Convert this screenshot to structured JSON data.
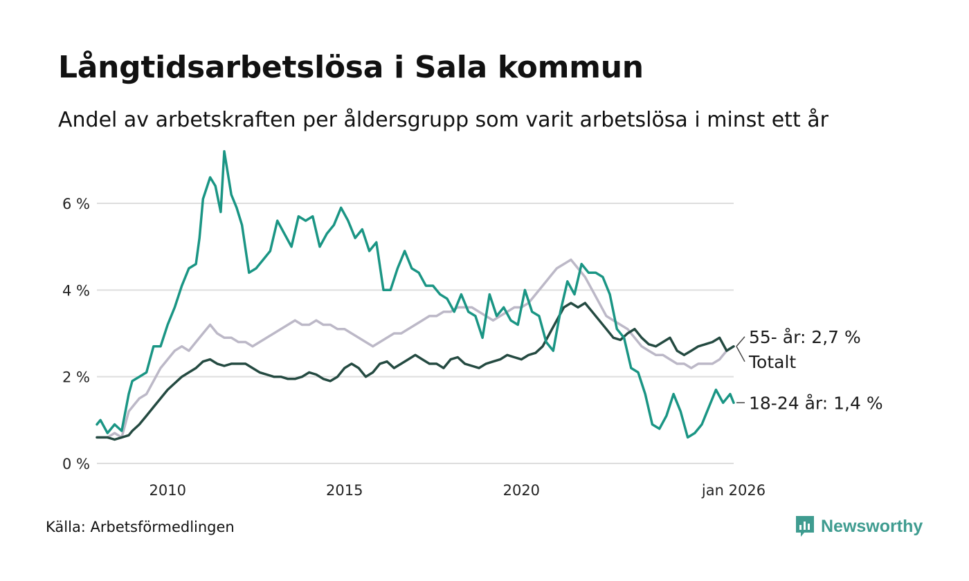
{
  "header": {
    "title": "Långtidsarbetslösa i Sala kommun",
    "subtitle": "Andel av arbetskraften per åldersgrupp som varit arbetslösa i minst ett år"
  },
  "footer": {
    "source": "Källa: Arbetsförmedlingen",
    "brand": "Newsworthy"
  },
  "colors": {
    "youth": "#1a9584",
    "older": "#bcb8c7",
    "total": "#244a41",
    "grid": "#dddddd",
    "brand": "#3f9c90"
  },
  "chart_data": {
    "type": "line",
    "title": "Långtidsarbetslösa i Sala kommun",
    "xlabel": "",
    "ylabel": "",
    "ylim": [
      0,
      7.5
    ],
    "xlim": [
      2008.0,
      2026.0
    ],
    "y_ticks": [
      {
        "value": 0,
        "label": "0 %"
      },
      {
        "value": 2,
        "label": "2 %"
      },
      {
        "value": 4,
        "label": "4 %"
      },
      {
        "value": 6,
        "label": "6 %"
      }
    ],
    "x_ticks": [
      {
        "value": 2010,
        "label": "2010"
      },
      {
        "value": 2015,
        "label": "2015"
      },
      {
        "value": 2020,
        "label": "2020"
      },
      {
        "value": 2026,
        "label": "jan 2026"
      }
    ],
    "series": [
      {
        "name": "55- år",
        "key": "older",
        "end_label": "55- år: 2,7 %",
        "x": [
          2008.0,
          2008.3,
          2008.5,
          2008.7,
          2008.9,
          2009.0,
          2009.2,
          2009.4,
          2009.6,
          2009.8,
          2010.0,
          2010.2,
          2010.4,
          2010.6,
          2010.8,
          2011.0,
          2011.2,
          2011.4,
          2011.6,
          2011.8,
          2012.0,
          2012.2,
          2012.4,
          2012.6,
          2012.8,
          2013.0,
          2013.2,
          2013.4,
          2013.6,
          2013.8,
          2014.0,
          2014.2,
          2014.4,
          2014.6,
          2014.8,
          2015.0,
          2015.2,
          2015.4,
          2015.6,
          2015.8,
          2016.0,
          2016.2,
          2016.4,
          2016.6,
          2016.8,
          2017.0,
          2017.2,
          2017.4,
          2017.6,
          2017.8,
          2018.0,
          2018.2,
          2018.4,
          2018.6,
          2018.8,
          2019.0,
          2019.2,
          2019.4,
          2019.6,
          2019.8,
          2020.0,
          2020.2,
          2020.4,
          2020.6,
          2020.8,
          2021.0,
          2021.2,
          2021.4,
          2021.6,
          2021.8,
          2022.0,
          2022.2,
          2022.4,
          2022.6,
          2022.8,
          2023.0,
          2023.2,
          2023.4,
          2023.6,
          2023.8,
          2024.0,
          2024.2,
          2024.4,
          2024.6,
          2024.8,
          2025.0,
          2025.2,
          2025.4,
          2025.6,
          2025.8,
          2026.0
        ],
        "values": [
          0.6,
          0.6,
          0.7,
          0.6,
          1.2,
          1.3,
          1.5,
          1.6,
          1.9,
          2.2,
          2.4,
          2.6,
          2.7,
          2.6,
          2.8,
          3.0,
          3.2,
          3.0,
          2.9,
          2.9,
          2.8,
          2.8,
          2.7,
          2.8,
          2.9,
          3.0,
          3.1,
          3.2,
          3.3,
          3.2,
          3.2,
          3.3,
          3.2,
          3.2,
          3.1,
          3.1,
          3.0,
          2.9,
          2.8,
          2.7,
          2.8,
          2.9,
          3.0,
          3.0,
          3.1,
          3.2,
          3.3,
          3.4,
          3.4,
          3.5,
          3.5,
          3.6,
          3.6,
          3.6,
          3.5,
          3.4,
          3.3,
          3.4,
          3.5,
          3.6,
          3.6,
          3.7,
          3.9,
          4.1,
          4.3,
          4.5,
          4.6,
          4.7,
          4.5,
          4.3,
          4.0,
          3.7,
          3.4,
          3.3,
          3.2,
          3.1,
          2.9,
          2.7,
          2.6,
          2.5,
          2.5,
          2.4,
          2.3,
          2.3,
          2.2,
          2.3,
          2.3,
          2.3,
          2.4,
          2.6,
          2.7
        ]
      },
      {
        "name": "Totalt",
        "key": "total",
        "end_label": "Totalt",
        "x": [
          2008.0,
          2008.3,
          2008.5,
          2008.7,
          2008.9,
          2009.0,
          2009.2,
          2009.4,
          2009.6,
          2009.8,
          2010.0,
          2010.2,
          2010.4,
          2010.6,
          2010.8,
          2011.0,
          2011.2,
          2011.4,
          2011.6,
          2011.8,
          2012.0,
          2012.2,
          2012.4,
          2012.6,
          2012.8,
          2013.0,
          2013.2,
          2013.4,
          2013.6,
          2013.8,
          2014.0,
          2014.2,
          2014.4,
          2014.6,
          2014.8,
          2015.0,
          2015.2,
          2015.4,
          2015.6,
          2015.8,
          2016.0,
          2016.2,
          2016.4,
          2016.6,
          2016.8,
          2017.0,
          2017.2,
          2017.4,
          2017.6,
          2017.8,
          2018.0,
          2018.2,
          2018.4,
          2018.6,
          2018.8,
          2019.0,
          2019.2,
          2019.4,
          2019.6,
          2019.8,
          2020.0,
          2020.2,
          2020.4,
          2020.6,
          2020.8,
          2021.0,
          2021.2,
          2021.4,
          2021.6,
          2021.8,
          2022.0,
          2022.2,
          2022.4,
          2022.6,
          2022.8,
          2023.0,
          2023.2,
          2023.4,
          2023.6,
          2023.8,
          2024.0,
          2024.2,
          2024.4,
          2024.6,
          2024.8,
          2025.0,
          2025.2,
          2025.4,
          2025.6,
          2025.8,
          2026.0
        ],
        "values": [
          0.6,
          0.6,
          0.55,
          0.6,
          0.65,
          0.75,
          0.9,
          1.1,
          1.3,
          1.5,
          1.7,
          1.85,
          2.0,
          2.1,
          2.2,
          2.35,
          2.4,
          2.3,
          2.25,
          2.3,
          2.3,
          2.3,
          2.2,
          2.1,
          2.05,
          2.0,
          2.0,
          1.95,
          1.95,
          2.0,
          2.1,
          2.05,
          1.95,
          1.9,
          2.0,
          2.2,
          2.3,
          2.2,
          2.0,
          2.1,
          2.3,
          2.35,
          2.2,
          2.3,
          2.4,
          2.5,
          2.4,
          2.3,
          2.3,
          2.2,
          2.4,
          2.45,
          2.3,
          2.25,
          2.2,
          2.3,
          2.35,
          2.4,
          2.5,
          2.45,
          2.4,
          2.5,
          2.55,
          2.7,
          3.0,
          3.3,
          3.6,
          3.7,
          3.6,
          3.7,
          3.5,
          3.3,
          3.1,
          2.9,
          2.85,
          3.0,
          3.1,
          2.9,
          2.75,
          2.7,
          2.8,
          2.9,
          2.6,
          2.5,
          2.6,
          2.7,
          2.75,
          2.8,
          2.9,
          2.6,
          2.7
        ]
      },
      {
        "name": "18-24 år",
        "key": "youth",
        "end_label": "18-24 år: 1,4 %",
        "x": [
          2008.0,
          2008.1,
          2008.3,
          2008.5,
          2008.7,
          2008.9,
          2009.0,
          2009.2,
          2009.4,
          2009.6,
          2009.8,
          2010.0,
          2010.2,
          2010.4,
          2010.6,
          2010.8,
          2010.9,
          2011.0,
          2011.2,
          2011.35,
          2011.5,
          2011.6,
          2011.8,
          2011.95,
          2012.1,
          2012.3,
          2012.5,
          2012.7,
          2012.9,
          2013.1,
          2013.3,
          2013.5,
          2013.7,
          2013.9,
          2014.1,
          2014.3,
          2014.5,
          2014.7,
          2014.9,
          2015.1,
          2015.3,
          2015.5,
          2015.7,
          2015.9,
          2016.1,
          2016.3,
          2016.5,
          2016.7,
          2016.9,
          2017.1,
          2017.3,
          2017.5,
          2017.7,
          2017.9,
          2018.1,
          2018.3,
          2018.5,
          2018.7,
          2018.9,
          2019.1,
          2019.3,
          2019.5,
          2019.7,
          2019.9,
          2020.1,
          2020.3,
          2020.5,
          2020.7,
          2020.9,
          2021.1,
          2021.3,
          2021.5,
          2021.7,
          2021.9,
          2022.1,
          2022.3,
          2022.5,
          2022.7,
          2022.9,
          2023.1,
          2023.3,
          2023.5,
          2023.7,
          2023.9,
          2024.1,
          2024.3,
          2024.5,
          2024.7,
          2024.9,
          2025.1,
          2025.3,
          2025.5,
          2025.7,
          2025.9,
          2026.0
        ],
        "values": [
          0.9,
          1.0,
          0.7,
          0.9,
          0.75,
          1.6,
          1.9,
          2.0,
          2.1,
          2.7,
          2.7,
          3.2,
          3.6,
          4.1,
          4.5,
          4.6,
          5.2,
          6.1,
          6.6,
          6.4,
          5.8,
          7.2,
          6.2,
          5.9,
          5.5,
          4.4,
          4.5,
          4.7,
          4.9,
          5.6,
          5.3,
          5.0,
          5.7,
          5.6,
          5.7,
          5.0,
          5.3,
          5.5,
          5.9,
          5.6,
          5.2,
          5.4,
          4.9,
          5.1,
          4.0,
          4.0,
          4.5,
          4.9,
          4.5,
          4.4,
          4.1,
          4.1,
          3.9,
          3.8,
          3.5,
          3.9,
          3.5,
          3.4,
          2.9,
          3.9,
          3.4,
          3.6,
          3.3,
          3.2,
          4.0,
          3.5,
          3.4,
          2.8,
          2.6,
          3.5,
          4.2,
          3.9,
          4.6,
          4.4,
          4.4,
          4.3,
          3.9,
          3.1,
          2.9,
          2.2,
          2.1,
          1.6,
          0.9,
          0.8,
          1.1,
          1.6,
          1.2,
          0.6,
          0.7,
          0.9,
          1.3,
          1.7,
          1.4,
          1.6,
          1.4
        ]
      }
    ]
  }
}
